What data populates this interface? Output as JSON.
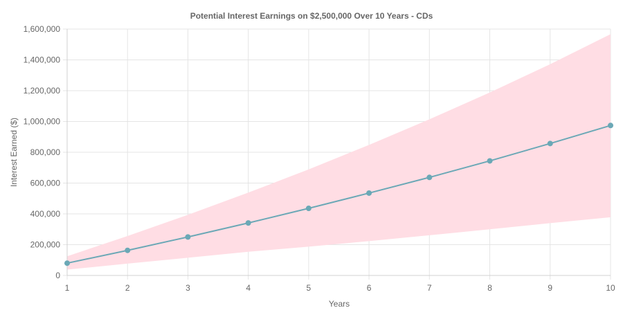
{
  "chart_data": {
    "type": "line",
    "title": "Potential Interest Earnings on $2,500,000 Over 10 Years - CDs",
    "xlabel": "Years",
    "ylabel": "Interest Earned ($)",
    "x": [
      1,
      2,
      3,
      4,
      5,
      6,
      7,
      8,
      9,
      10
    ],
    "xlim": [
      1,
      10
    ],
    "ylim": [
      0,
      1600000
    ],
    "y_ticks": [
      0,
      200000,
      400000,
      600000,
      800000,
      1000000,
      1200000,
      1400000,
      1600000
    ],
    "y_tick_labels": [
      "0",
      "200,000",
      "400,000",
      "600,000",
      "800,000",
      "1,000,000",
      "1,200,000",
      "1,400,000",
      "1,600,000"
    ],
    "x_tick_labels": [
      "1",
      "2",
      "3",
      "4",
      "5",
      "6",
      "7",
      "8",
      "9",
      "10"
    ],
    "grid": true,
    "series": [
      {
        "values": [
          80000,
          163000,
          250000,
          341000,
          436000,
          535000,
          637000,
          744000,
          857000,
          974000
        ],
        "color": "#6ba8b6"
      }
    ],
    "range_band": {
      "upper": [
        125000,
        256000,
        394000,
        538000,
        689000,
        848000,
        1014000,
        1188000,
        1372000,
        1567000
      ],
      "lower": [
        38000,
        77000,
        115000,
        154000,
        187000,
        223000,
        261000,
        300000,
        340000,
        378000
      ],
      "color": "#ffdde4"
    }
  }
}
